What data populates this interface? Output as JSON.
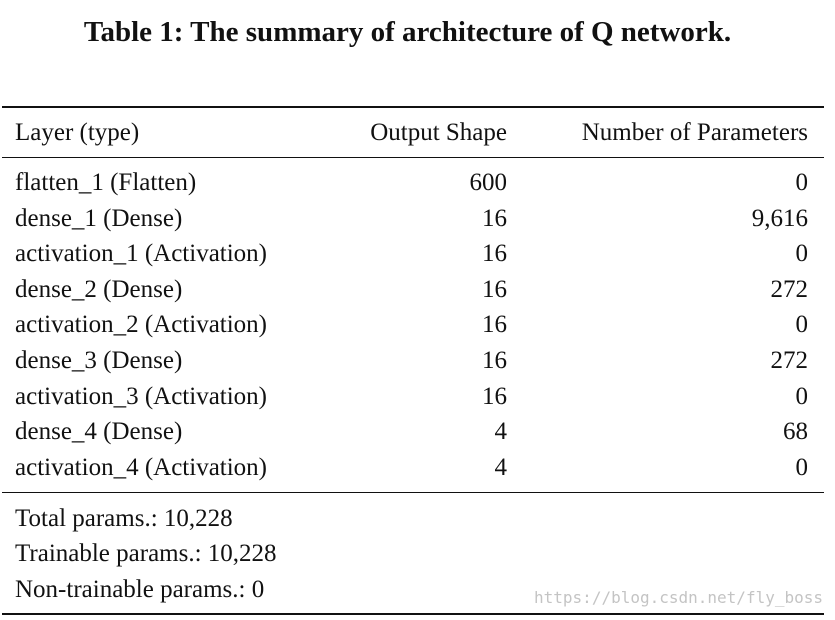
{
  "caption": "Table 1: The summary of architecture of Q network.",
  "table": {
    "headers": {
      "layer": "Layer (type)",
      "output_shape": "Output Shape",
      "num_params": "Number of Parameters"
    },
    "rows": [
      {
        "layer": "flatten_1 (Flatten)",
        "output_shape": "600",
        "num_params": "0"
      },
      {
        "layer": "dense_1 (Dense)",
        "output_shape": "16",
        "num_params": "9,616"
      },
      {
        "layer": "activation_1 (Activation)",
        "output_shape": "16",
        "num_params": "0"
      },
      {
        "layer": "dense_2 (Dense)",
        "output_shape": "16",
        "num_params": "272"
      },
      {
        "layer": "activation_2 (Activation)",
        "output_shape": "16",
        "num_params": "0"
      },
      {
        "layer": "dense_3 (Dense)",
        "output_shape": "16",
        "num_params": "272"
      },
      {
        "layer": "activation_3 (Activation)",
        "output_shape": "16",
        "num_params": "0"
      },
      {
        "layer": "dense_4 (Dense)",
        "output_shape": "4",
        "num_params": "68"
      },
      {
        "layer": "activation_4 (Activation)",
        "output_shape": "4",
        "num_params": "0"
      }
    ],
    "summary": [
      "Total params.: 10,228",
      "Trainable params.: 10,228",
      "Non-trainable params.: 0"
    ]
  },
  "watermark": "https://blog.csdn.net/fly_boss"
}
